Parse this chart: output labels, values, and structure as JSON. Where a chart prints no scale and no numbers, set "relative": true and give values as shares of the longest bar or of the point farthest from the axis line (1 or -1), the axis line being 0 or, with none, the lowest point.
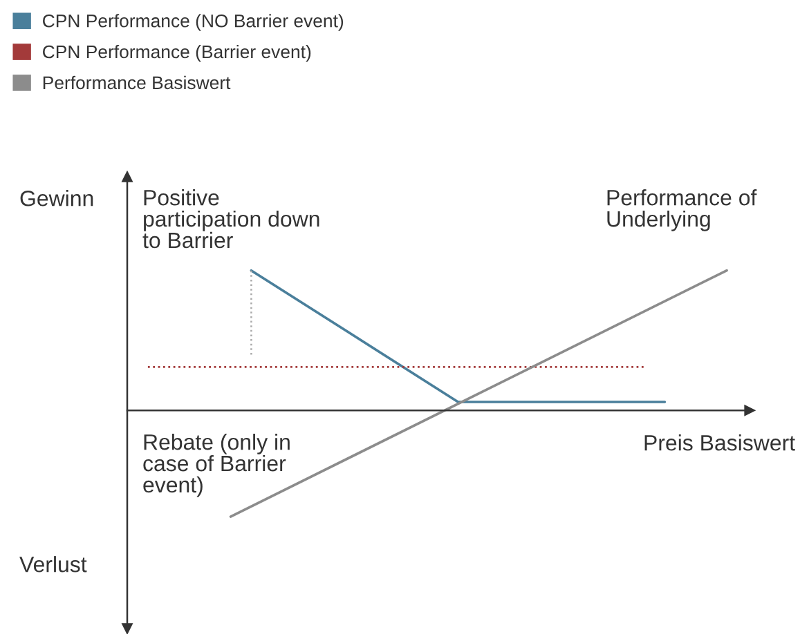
{
  "chart_data": {
    "type": "line",
    "relative": true,
    "categories": [
      null,
      null,
      null,
      null,
      null,
      null,
      null,
      null,
      null,
      null,
      null,
      null,
      null,
      null,
      null,
      null,
      null,
      null,
      null,
      null,
      null,
      null,
      null,
      null,
      null,
      null,
      null,
      null,
      null,
      null,
      null
    ],
    "series": [
      {
        "name": "CPN Performance (NO Barrier event)",
        "color": "#4a7f9b",
        "line_style": "solid",
        "values": [
          null,
          null,
          null,
          null,
          null,
          null,
          1.0,
          null,
          null,
          null,
          null,
          null,
          null,
          null,
          null,
          null,
          0.06,
          null,
          null,
          null,
          null,
          null,
          null,
          null,
          null,
          null,
          0.06,
          null,
          null,
          null,
          null
        ]
      },
      {
        "name": "CPN Performance (Barrier event)",
        "color": "#a33a3a",
        "line_style": "dotted",
        "values": [
          null,
          0.31,
          null,
          null,
          null,
          null,
          null,
          null,
          null,
          null,
          null,
          null,
          null,
          null,
          null,
          null,
          null,
          null,
          null,
          null,
          null,
          null,
          null,
          null,
          null,
          0.31,
          null,
          null,
          null,
          null,
          null
        ]
      },
      {
        "name": "Performance Basiswert",
        "color": "#8c8c8c",
        "line_style": "solid",
        "values": [
          null,
          null,
          null,
          null,
          null,
          -0.76,
          null,
          null,
          null,
          null,
          null,
          null,
          null,
          null,
          null,
          null,
          null,
          null,
          null,
          null,
          null,
          null,
          null,
          null,
          null,
          null,
          null,
          null,
          null,
          1.0,
          null
        ]
      }
    ],
    "xlabel": "Preis Basiswert",
    "annotations": [
      "Gewinn",
      "Verlust",
      "Positive\nparticipation down\nto Barrier",
      "Performance of\nUnderlying",
      "Rebate (only in\ncase of Barrier\nevent)"
    ],
    "legend": "top left"
  }
}
